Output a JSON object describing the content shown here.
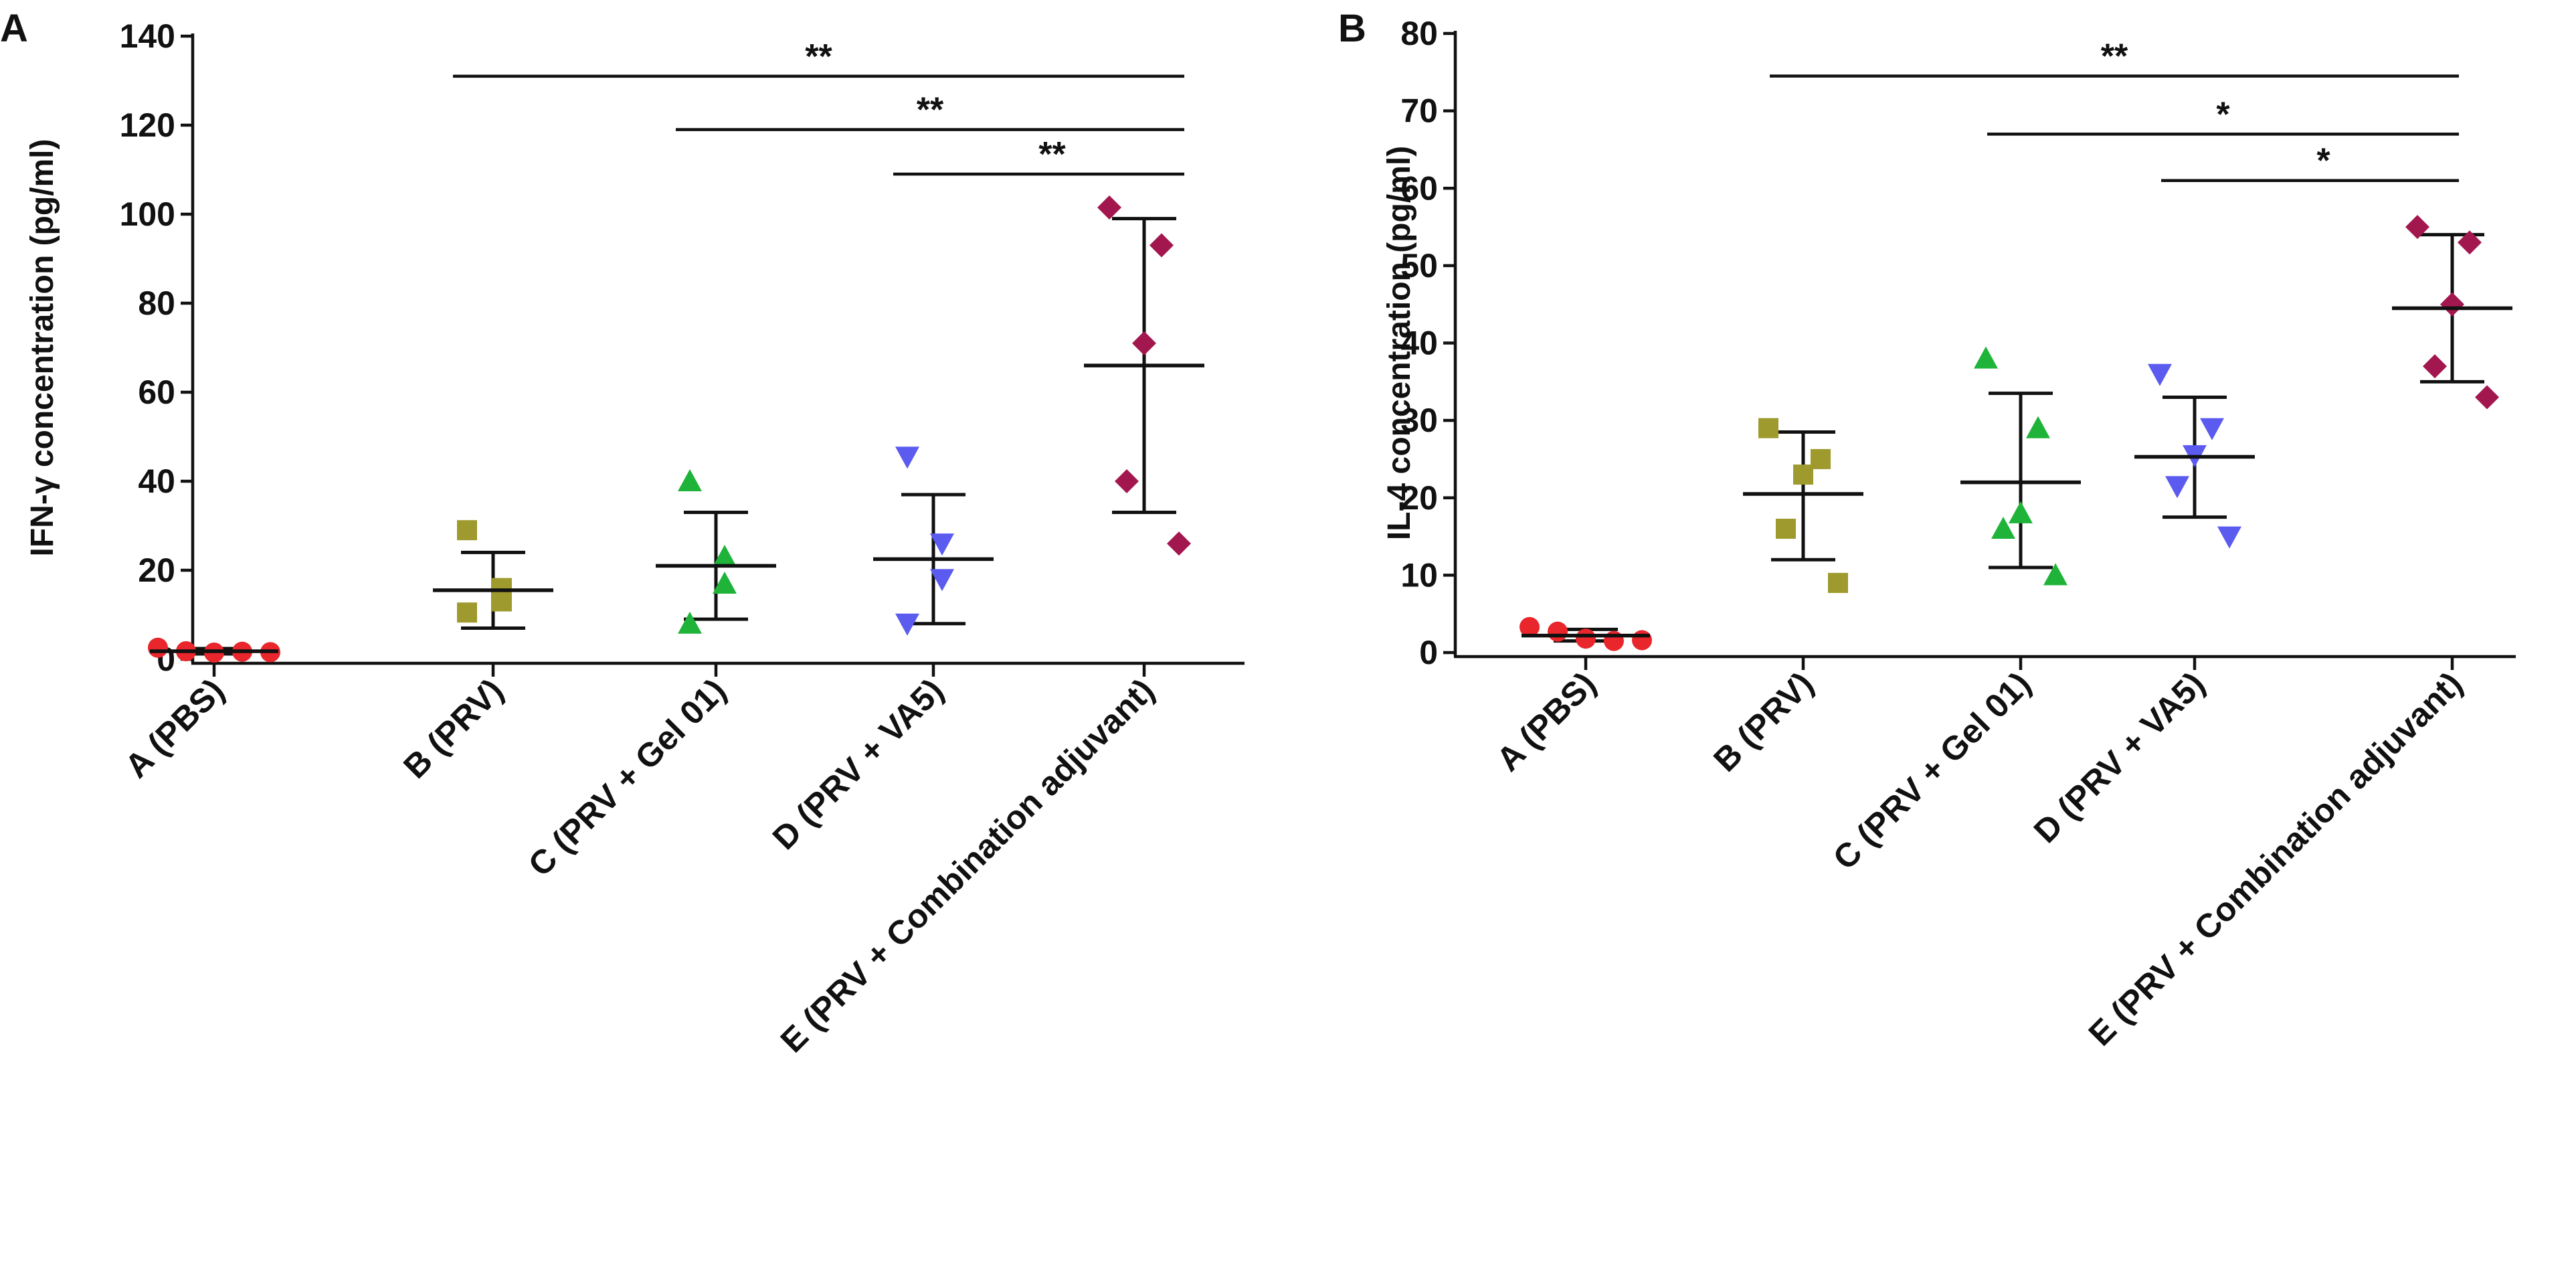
{
  "chart_data": [
    {
      "panel": "A",
      "type": "scatter",
      "ylabel": "IFN-γ  concentration (pg/ml)",
      "ylim": [
        0,
        140
      ],
      "yticks": [
        0,
        20,
        40,
        60,
        80,
        100,
        120,
        140
      ],
      "categories": [
        "A (PBS)",
        "B (PRV)",
        "C (PRV + Gel 01)",
        "D (PRV + VA5)",
        "E (PRV + Combination adjuvant)"
      ],
      "series": [
        {
          "name": "A (PBS)",
          "marker": "circle",
          "color": "#e8262b",
          "points": [
            2.6,
            1.8,
            1.5,
            1.7,
            1.6
          ],
          "mean": 1.8,
          "sd_low": 1.2,
          "sd_high": 2.4
        },
        {
          "name": "B (PRV)",
          "marker": "square",
          "color": "#9e9a2e",
          "points": [
            29,
            16,
            13,
            10.5
          ],
          "mean": 15.5,
          "sd_low": 7,
          "sd_high": 24
        },
        {
          "name": "C (PRV + Gel 01)",
          "marker": "triangle-up",
          "color": "#1fb33a",
          "points": [
            40,
            23,
            17,
            8
          ],
          "mean": 21,
          "sd_low": 9,
          "sd_high": 33
        },
        {
          "name": "D (PRV + VA5)",
          "marker": "triangle-down",
          "color": "#5b5bf0",
          "points": [
            45.5,
            26,
            18,
            8
          ],
          "mean": 22.5,
          "sd_low": 8,
          "sd_high": 37
        },
        {
          "name": "E (PRV + Combination adjuvant)",
          "marker": "diamond",
          "color": "#a3174f",
          "points": [
            101.5,
            93,
            71,
            40,
            26
          ],
          "mean": 66,
          "sd_low": 33,
          "sd_high": 99
        }
      ],
      "significance": [
        {
          "from": 1,
          "to": 4,
          "y": 131,
          "label": "**"
        },
        {
          "from": 2,
          "to": 4,
          "y": 119,
          "label": "**"
        },
        {
          "from": 3,
          "to": 4,
          "y": 109,
          "label": "**"
        }
      ]
    },
    {
      "panel": "B",
      "type": "scatter",
      "ylabel": "IL-4 concentration  (pg/ml)",
      "ylim": [
        0,
        80
      ],
      "yticks": [
        0,
        10,
        20,
        30,
        40,
        50,
        60,
        70,
        80
      ],
      "categories": [
        "A (PBS)",
        "B (PRV)",
        "C (PRV + Gel 01)",
        "D (PRV + VA5)",
        "E (PRV + Combination adjuvant)"
      ],
      "series": [
        {
          "name": "A (PBS)",
          "marker": "circle",
          "color": "#e8262b",
          "points": [
            3.3,
            2.7,
            1.8,
            1.5,
            1.6
          ],
          "mean": 2.2,
          "sd_low": 1.5,
          "sd_high": 3.0
        },
        {
          "name": "B (PRV)",
          "marker": "square",
          "color": "#9e9a2e",
          "points": [
            29,
            25,
            23,
            16,
            9
          ],
          "mean": 20.5,
          "sd_low": 12,
          "sd_high": 28.5
        },
        {
          "name": "C (PRV + Gel 01)",
          "marker": "triangle-up",
          "color": "#1fb33a",
          "points": [
            38,
            29,
            18,
            16,
            10
          ],
          "mean": 22,
          "sd_low": 11,
          "sd_high": 33.5
        },
        {
          "name": "D (PRV + VA5)",
          "marker": "triangle-down",
          "color": "#5b5bf0",
          "points": [
            36,
            29,
            25.5,
            21.5,
            15
          ],
          "mean": 25.3,
          "sd_low": 17.5,
          "sd_high": 33
        },
        {
          "name": "E (PRV + Combination adjuvant)",
          "marker": "diamond",
          "color": "#a3174f",
          "points": [
            55,
            53,
            45,
            37,
            33
          ],
          "mean": 44.5,
          "sd_low": 35,
          "sd_high": 54
        }
      ],
      "significance": [
        {
          "from": 1,
          "to": 4,
          "y": 74.5,
          "label": "**"
        },
        {
          "from": 2,
          "to": 4,
          "y": 67,
          "label": "*"
        },
        {
          "from": 3,
          "to": 4,
          "y": 61,
          "label": "*"
        }
      ]
    }
  ]
}
